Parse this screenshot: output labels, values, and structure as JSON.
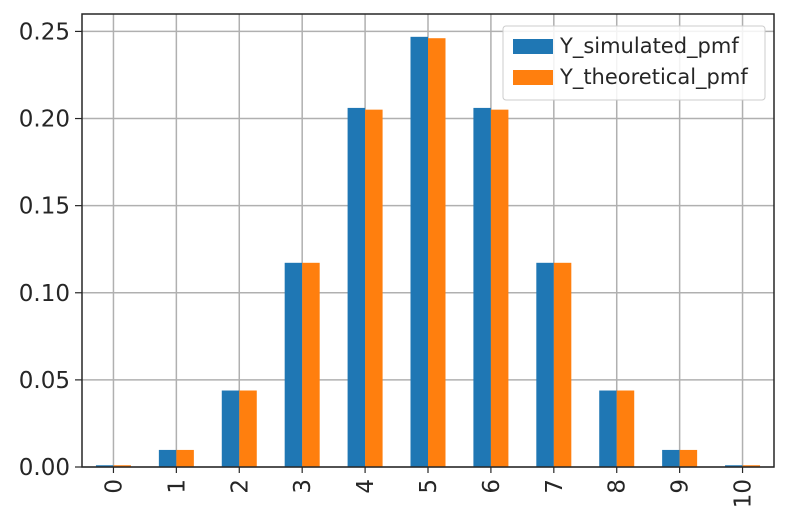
{
  "chart_data": {
    "type": "bar",
    "categories": [
      "0",
      "1",
      "2",
      "3",
      "4",
      "5",
      "6",
      "7",
      "8",
      "9",
      "10"
    ],
    "series": [
      {
        "name": "Y_simulated_pmf",
        "color": "#1f77b4",
        "values": [
          0.001,
          0.0098,
          0.0439,
          0.1172,
          0.2061,
          0.2469,
          0.2061,
          0.1172,
          0.0439,
          0.0098,
          0.001
        ]
      },
      {
        "name": "Y_theoretical_pmf",
        "color": "#ff7f0e",
        "values": [
          0.001,
          0.0098,
          0.0439,
          0.1172,
          0.2051,
          0.2461,
          0.2051,
          0.1172,
          0.0439,
          0.0098,
          0.001
        ]
      }
    ],
    "ylim": [
      0,
      0.26
    ],
    "yticks": [
      "0.00",
      "0.05",
      "0.10",
      "0.15",
      "0.20",
      "0.25"
    ],
    "ytick_values": [
      0,
      0.05,
      0.1,
      0.15,
      0.2,
      0.25
    ],
    "grid": true,
    "legend_position": "top-right"
  }
}
